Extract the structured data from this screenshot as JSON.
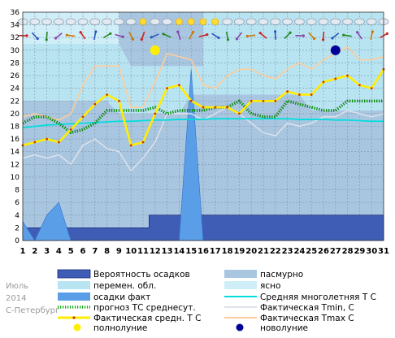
{
  "caption": {
    "month": "Июль",
    "year": "2014",
    "city": "С-Петербург"
  },
  "chart_data": {
    "type": "line",
    "x": [
      1,
      2,
      3,
      4,
      5,
      6,
      7,
      8,
      9,
      10,
      11,
      12,
      13,
      14,
      15,
      16,
      17,
      18,
      19,
      20,
      21,
      22,
      23,
      24,
      25,
      26,
      27,
      28,
      29,
      30,
      31
    ],
    "xlim": [
      1,
      31
    ],
    "ylim": [
      0,
      36
    ],
    "yticks": [
      0,
      2,
      4,
      6,
      8,
      10,
      12,
      14,
      16,
      18,
      20,
      22,
      24,
      26,
      28,
      30,
      32,
      34,
      36
    ],
    "grid": true,
    "legend_position": "bottom",
    "series": [
      {
        "name": "Вероятность осадков",
        "kind": "area",
        "color": "#3f5db5",
        "values": [
          2,
          2,
          2,
          2,
          2,
          2,
          2,
          2,
          2,
          2,
          2,
          4,
          4,
          4,
          4,
          4,
          4,
          4,
          4,
          4,
          4,
          4,
          4,
          4,
          4,
          4,
          4,
          4,
          4,
          4,
          4
        ]
      },
      {
        "name": "осадки факт",
        "kind": "area",
        "color": "#5b9ee8",
        "values": [
          3,
          0,
          4,
          6,
          0,
          0,
          0,
          0,
          0,
          0,
          0,
          0,
          0,
          0,
          27,
          0,
          0,
          0,
          0,
          0,
          0,
          0,
          0,
          0,
          0,
          0,
          0,
          0,
          0,
          0,
          0
        ]
      },
      {
        "name": "прогноз ТС среднесут.",
        "kind": "dotted-line",
        "color": "#00aa00",
        "values": [
          18.5,
          19.5,
          19.5,
          18.5,
          17,
          17.5,
          18.5,
          20.5,
          20.5,
          20.5,
          20.5,
          21,
          20,
          20.5,
          20.5,
          20.5,
          21,
          21,
          22,
          20,
          19.5,
          19.5,
          22,
          21.5,
          21,
          20.5,
          20.5,
          22,
          22,
          22,
          22
        ]
      },
      {
        "name": "Средняя многолетняя Т С",
        "kind": "line",
        "color": "#00dddd",
        "values": [
          17.8,
          18,
          18.2,
          18.3,
          18.4,
          18.5,
          18.6,
          18.7,
          18.8,
          18.8,
          18.9,
          19,
          19,
          19.1,
          19.1,
          19.1,
          19.2,
          19.2,
          19.2,
          19.2,
          19.2,
          19.2,
          19.2,
          19.1,
          19.1,
          19.1,
          19,
          19,
          18.9,
          18.8,
          18.8
        ]
      },
      {
        "name": "Фактическая Tmin, C",
        "kind": "line",
        "color": "#dde2ea",
        "values": [
          13,
          13.5,
          13,
          13.5,
          12,
          15,
          16,
          14.5,
          14,
          11,
          13,
          15.5,
          20,
          20,
          20,
          19,
          20,
          21,
          20,
          18.5,
          17,
          16.5,
          18.5,
          18,
          18.5,
          19.5,
          19.5,
          20.5,
          20,
          19.5,
          20
        ]
      },
      {
        "name": "Фактическая средн. Т С",
        "kind": "line",
        "color": "#ffee00",
        "values": [
          15,
          15.5,
          16,
          15.5,
          17.5,
          19.5,
          21.5,
          23,
          22,
          15,
          15.5,
          20,
          24,
          24.5,
          22,
          21,
          21,
          21,
          20,
          22,
          22,
          22,
          23.5,
          23,
          23,
          25,
          25.5,
          26,
          24.5,
          24,
          27
        ]
      },
      {
        "name": "Фактическая Tmax C",
        "kind": "line",
        "color": "#ffcc99",
        "values": [
          19.5,
          20,
          19.5,
          19,
          20,
          24.5,
          27.5,
          27.5,
          27.5,
          21,
          21,
          25,
          29.5,
          29,
          28.5,
          24.5,
          24,
          26,
          27,
          27,
          26,
          25.5,
          27,
          28,
          27,
          28.5,
          29.5,
          30.5,
          28.5,
          28.5,
          29
        ]
      },
      {
        "name": "полнолуние",
        "kind": "marker",
        "color": "#ffee00",
        "x": 12,
        "y": 30
      },
      {
        "name": "новолуние",
        "kind": "marker",
        "color": "#000099",
        "x": 27,
        "y": 30
      }
    ],
    "background_bands": [
      {
        "name": "пасмурно",
        "color": "#a9c6e0"
      },
      {
        "name": "перемен. обл.",
        "color": "#b8e4f2"
      },
      {
        "name": "ясно",
        "color": "#cfeef7"
      }
    ]
  }
}
